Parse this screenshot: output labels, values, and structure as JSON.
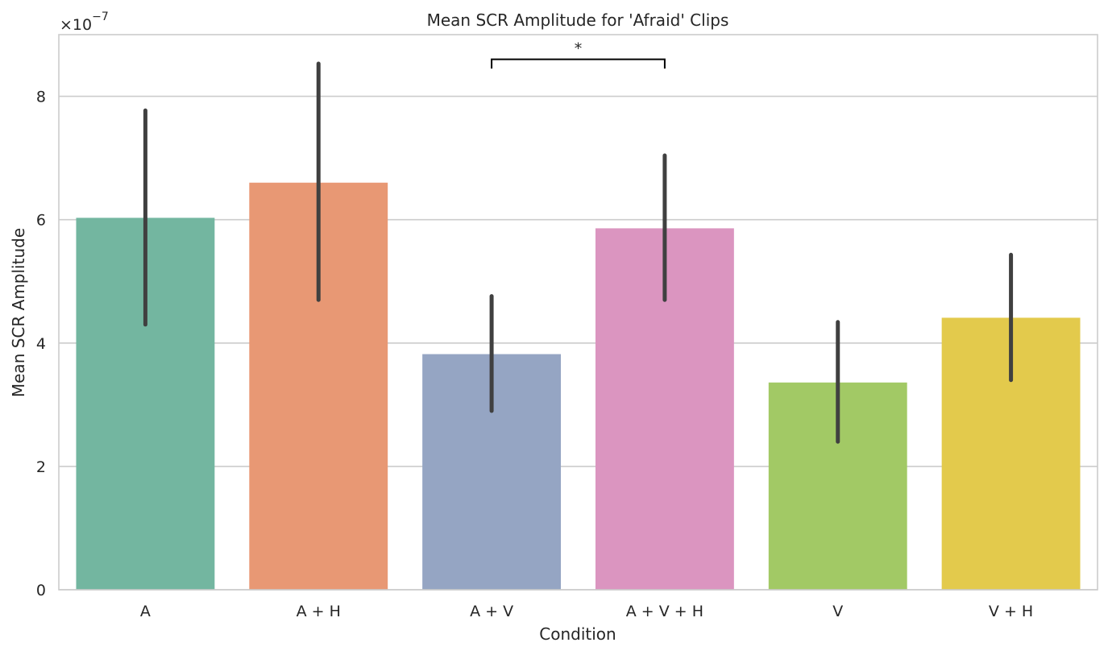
{
  "chart_data": {
    "type": "bar",
    "title": "Mean SCR Amplitude for 'Afraid' Clips",
    "xlabel": "Condition",
    "ylabel": "Mean SCR Amplitude",
    "scale_base": "×10",
    "scale_exponent": "−7",
    "ylim": [
      0,
      9.0
    ],
    "yticks": [
      0,
      2,
      4,
      6,
      8
    ],
    "ytick_labels": [
      "0",
      "2",
      "4",
      "6",
      "8"
    ],
    "categories": [
      "A",
      "A + H",
      "A + V",
      "A + V + H",
      "V",
      "V + H"
    ],
    "values": [
      6.03,
      6.6,
      3.82,
      5.86,
      3.36,
      4.41
    ],
    "error_low": [
      4.3,
      4.7,
      2.9,
      4.7,
      2.4,
      3.4
    ],
    "error_high": [
      7.77,
      8.53,
      4.76,
      7.04,
      4.34,
      5.43
    ],
    "colors": [
      "#73b6a0",
      "#e89874",
      "#95a5c3",
      "#db95c0",
      "#a2c965",
      "#e3ca4c"
    ],
    "error_color": "#404040",
    "grid": true,
    "annotation": {
      "text": "*",
      "from_category": "A + V",
      "to_category": "A + V + H",
      "y_value": 8.6,
      "drop_to": 8.45
    }
  }
}
